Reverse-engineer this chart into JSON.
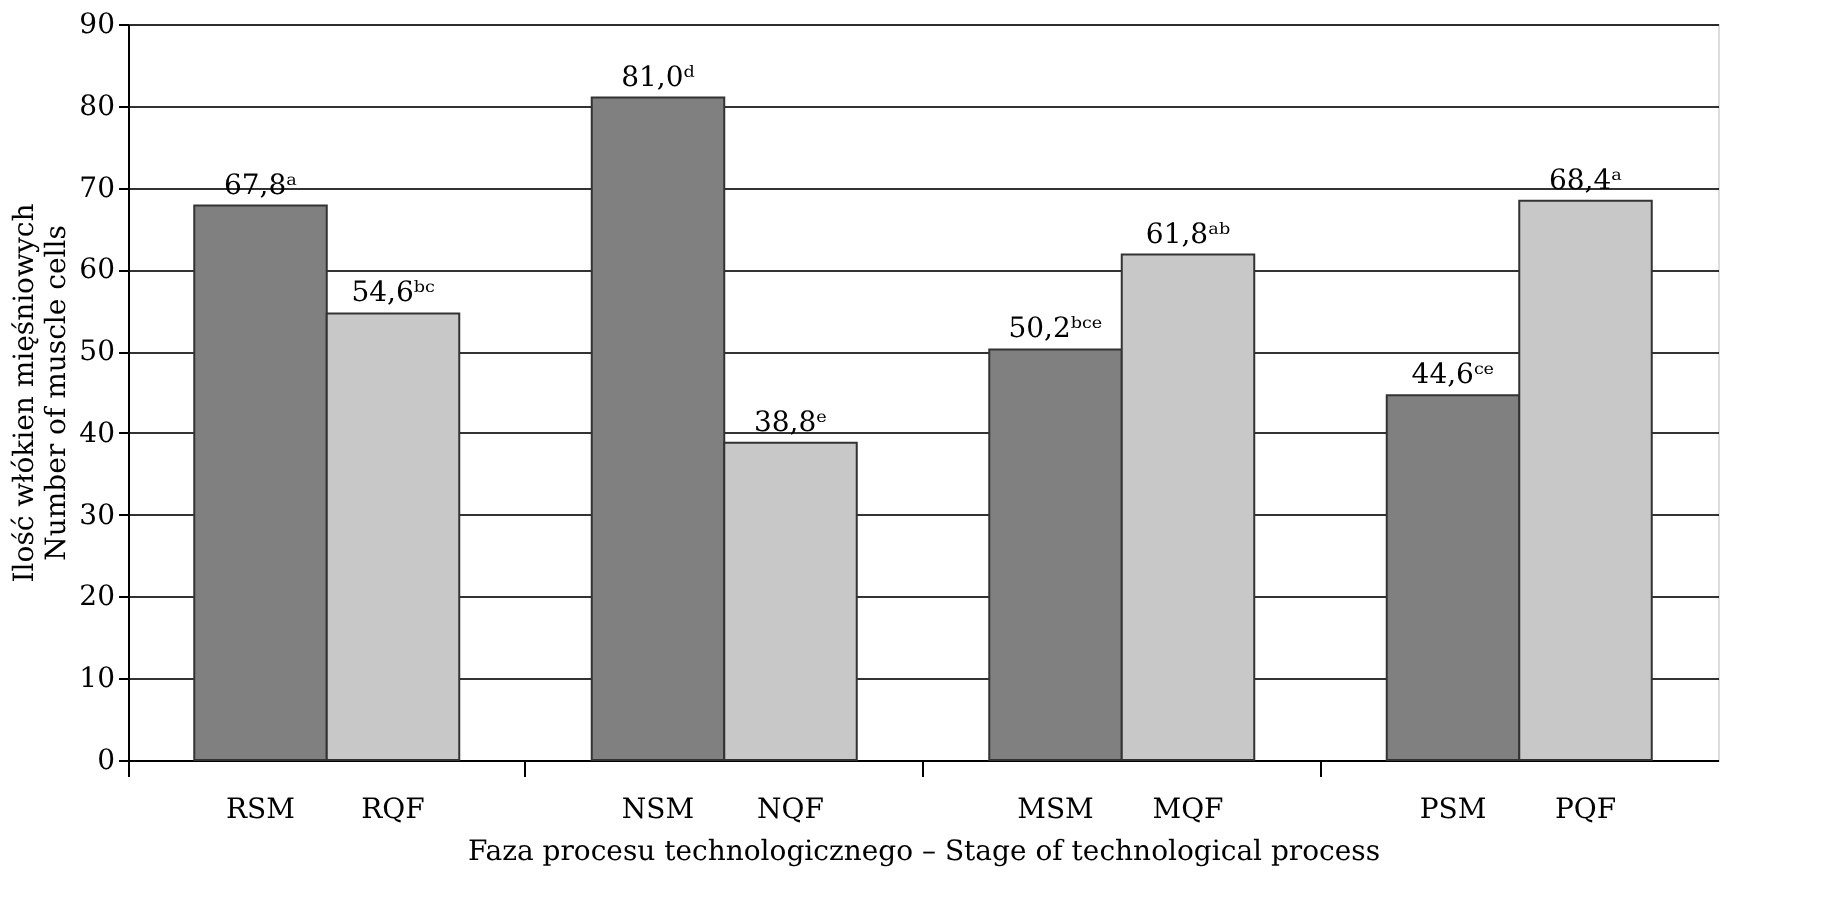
{
  "chart_data": {
    "type": "bar",
    "xlabel": "Faza procesu technologicznego – Stage of technological process",
    "ylabel": "Ilość włókien mięśniowych\nNumber of muscle cells",
    "categories": [
      "RSM",
      "RQF",
      "NSM",
      "NQF",
      "MSM",
      "MQF",
      "PSM",
      "PQF"
    ],
    "values": [
      67.8,
      54.6,
      81.0,
      38.8,
      50.2,
      61.8,
      44.6,
      68.4
    ],
    "colors": [
      "#808080",
      "#c8c8c8",
      "#808080",
      "#c8c8c8",
      "#808080",
      "#c8c8c8",
      "#808080",
      "#c8c8c8"
    ],
    "value_labels": [
      "67,8ᵃ",
      "54,6ᵇᶜ",
      "81,0ᵈ",
      "38,8ᵉ",
      "50,2ᵇᶜᵉ",
      "61,8ᵃᵇ",
      "44,6ᶜᵉ",
      "68,4ᵃ"
    ],
    "ylim": [
      0,
      90
    ],
    "yticks": [
      0,
      10,
      20,
      30,
      40,
      50,
      60,
      70,
      80,
      90
    ],
    "grid": "y"
  }
}
